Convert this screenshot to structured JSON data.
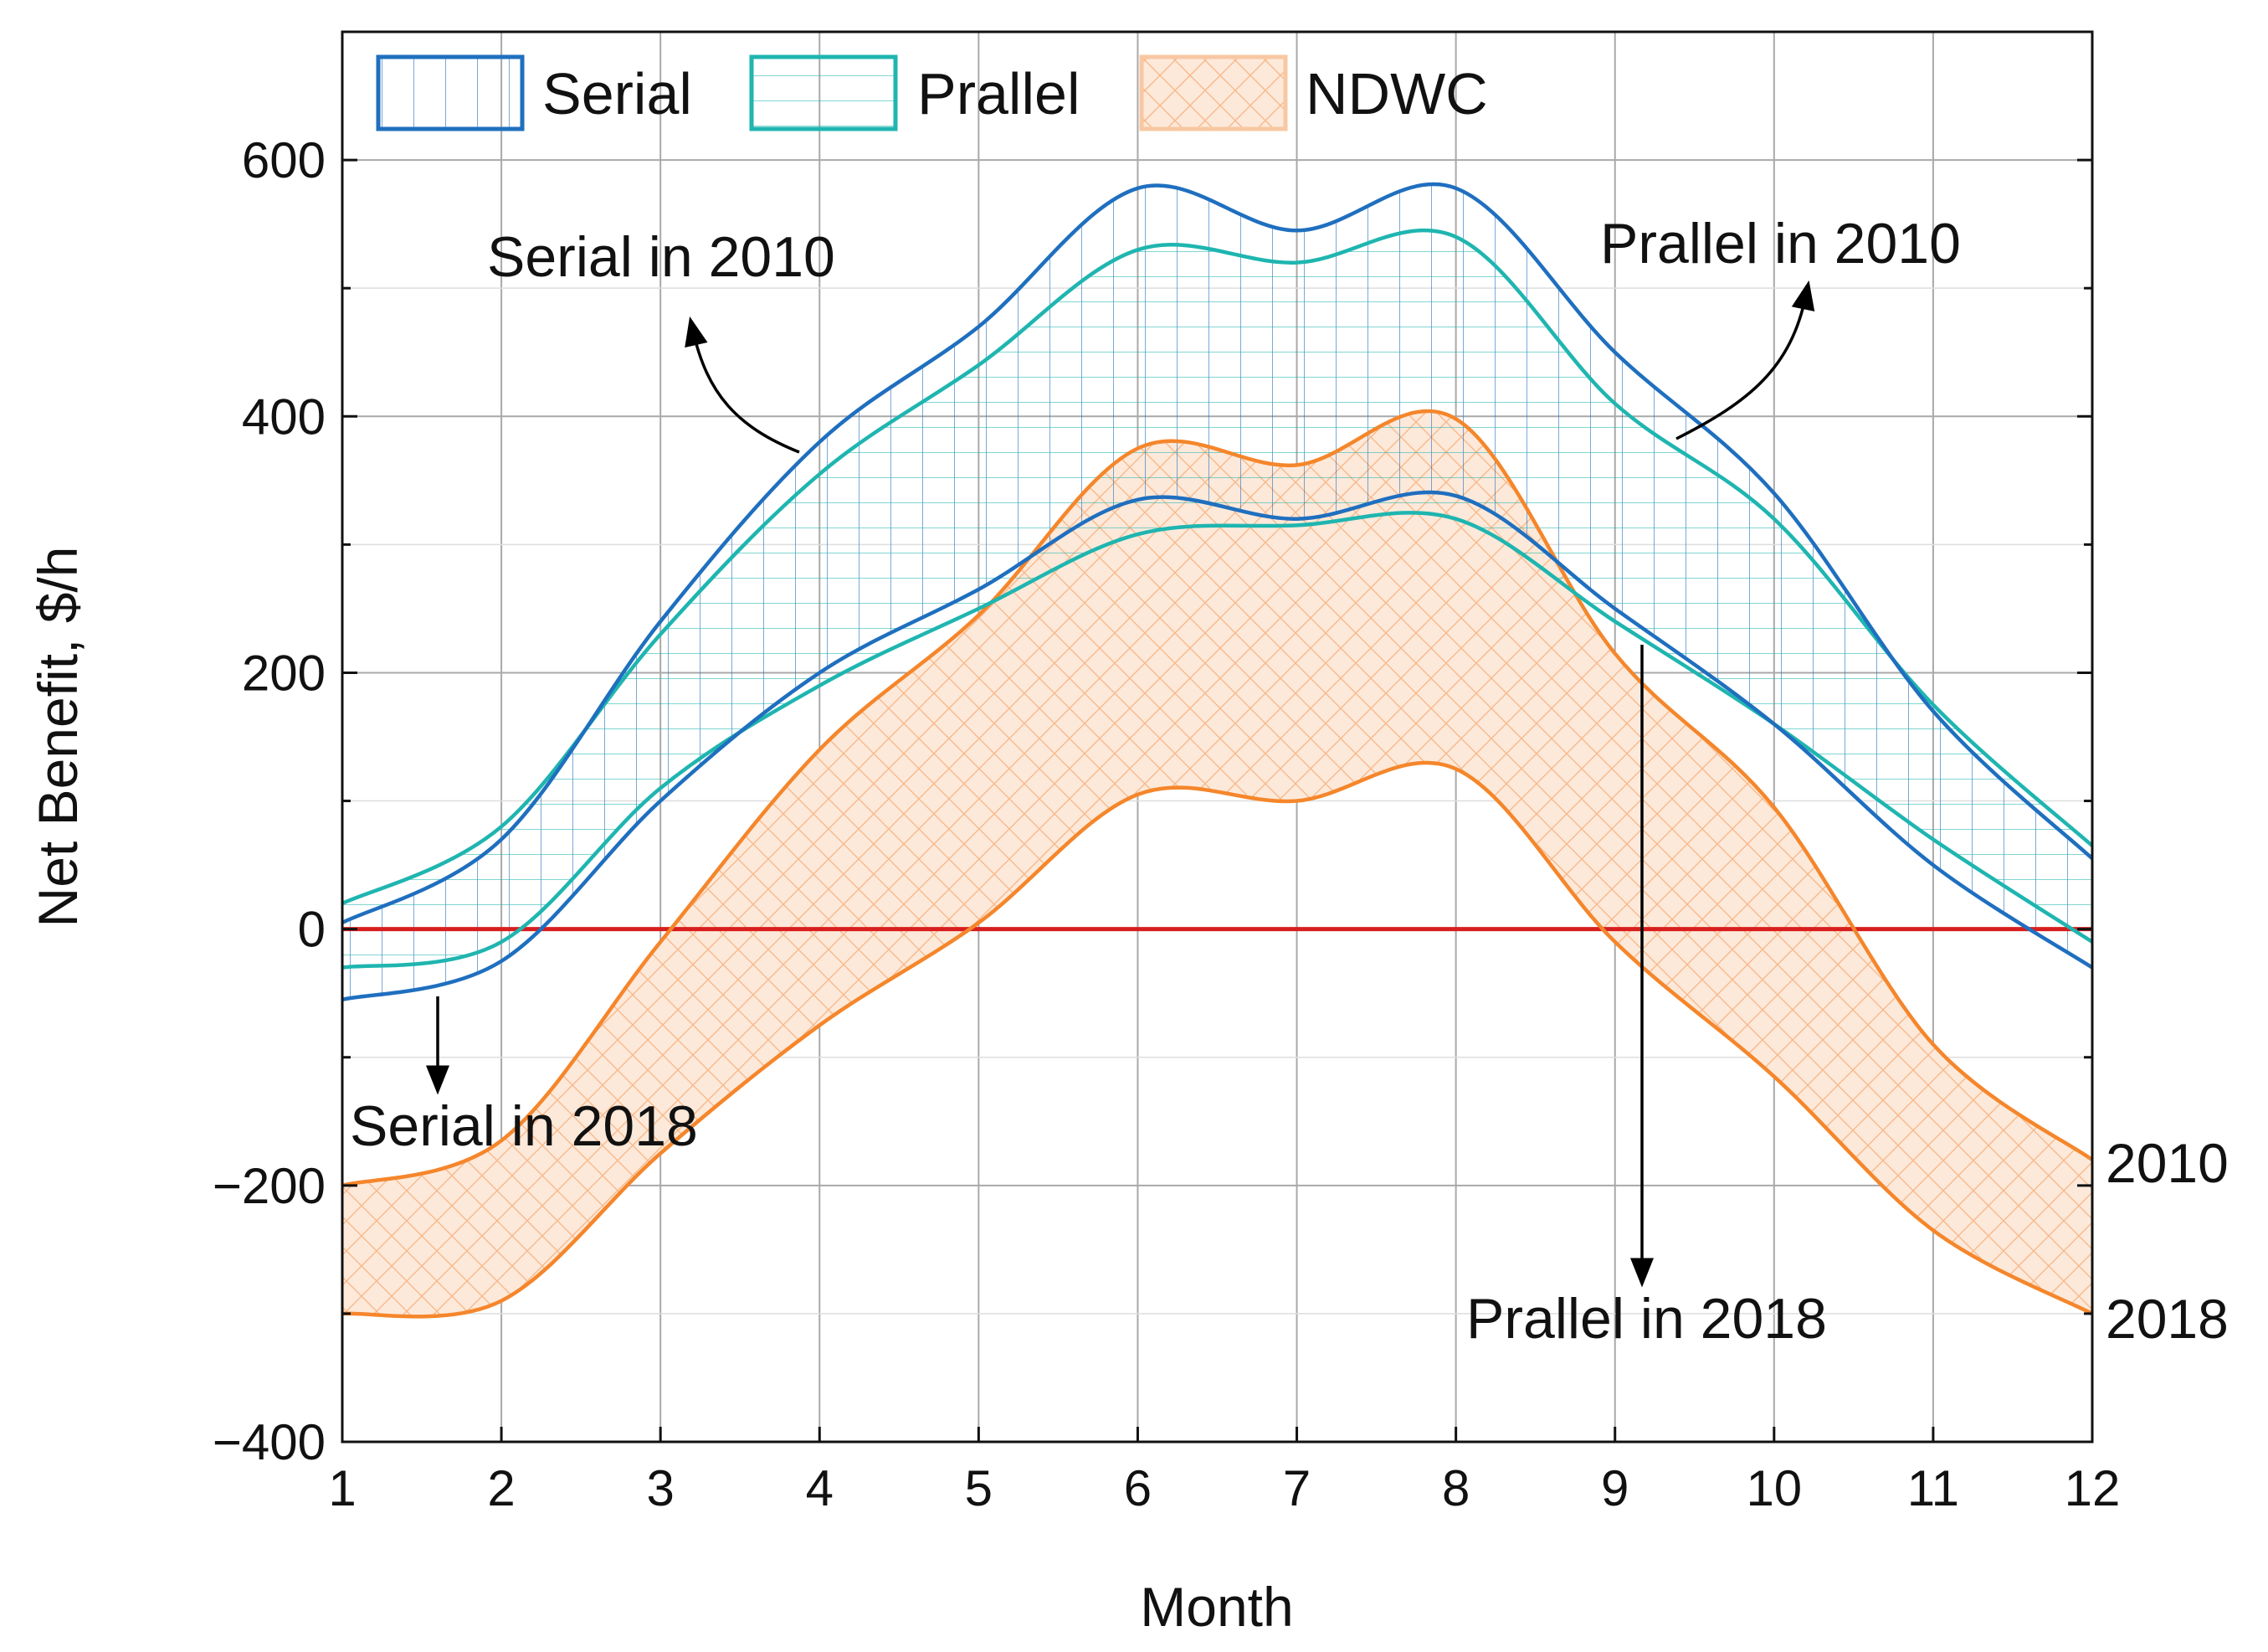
{
  "chart_data": {
    "type": "area",
    "title": "",
    "xlabel": "Month",
    "ylabel": "Net Benefit, $/h",
    "xlim": [
      1,
      12
    ],
    "ylim": [
      -400,
      700
    ],
    "xticks": [
      1,
      2,
      3,
      4,
      5,
      6,
      7,
      8,
      9,
      10,
      11,
      12
    ],
    "yticks": [
      -400,
      -200,
      0,
      200,
      400,
      600
    ],
    "x": [
      1,
      2,
      3,
      4,
      5,
      6,
      7,
      8,
      9,
      10,
      11,
      12
    ],
    "colors": {
      "serial": "#1f6fbf",
      "parallel": "#1fb5b0",
      "ndwc": "#f5862b",
      "ndwc_fill": "#fde3cf",
      "zero_line": "#d81e1e",
      "grid": "#a9a9a9"
    },
    "legend": {
      "position": "top-left",
      "entries": [
        {
          "key": "serial",
          "label": "Serial"
        },
        {
          "key": "parallel",
          "label": "Prallel"
        },
        {
          "key": "ndwc",
          "label": "NDWC"
        }
      ]
    },
    "series": [
      {
        "name": "Serial 2010",
        "group": "serial",
        "year": "2010",
        "values": [
          5,
          70,
          240,
          380,
          470,
          578,
          545,
          578,
          450,
          340,
          170,
          55
        ]
      },
      {
        "name": "Serial 2018",
        "group": "serial",
        "year": "2018",
        "values": [
          -55,
          -25,
          100,
          200,
          265,
          335,
          320,
          338,
          250,
          160,
          50,
          -30
        ]
      },
      {
        "name": "Prallel 2010",
        "group": "parallel",
        "year": "2010",
        "values": [
          20,
          80,
          230,
          355,
          440,
          530,
          520,
          540,
          410,
          320,
          175,
          65
        ]
      },
      {
        "name": "Prallel 2018",
        "group": "parallel",
        "year": "2018",
        "values": [
          -30,
          -10,
          110,
          190,
          250,
          308,
          315,
          320,
          240,
          160,
          70,
          -10
        ]
      },
      {
        "name": "NDWC 2010",
        "group": "ndwc",
        "year": "2010",
        "values": [
          -200,
          -165,
          -10,
          140,
          245,
          375,
          362,
          398,
          215,
          95,
          -90,
          -180
        ]
      },
      {
        "name": "NDWC 2018",
        "group": "ndwc",
        "year": "2018",
        "values": [
          -300,
          -290,
          -175,
          -75,
          5,
          105,
          100,
          125,
          -10,
          -115,
          -235,
          -300
        ]
      }
    ],
    "reference_line": {
      "y": 0
    },
    "annotations": [
      {
        "id": "serial-2010",
        "text": "Serial in 2010"
      },
      {
        "id": "prallel-2010",
        "text": "Prallel in 2010"
      },
      {
        "id": "serial-2018",
        "text": "Serial in 2018"
      },
      {
        "id": "prallel-2018",
        "text": "Prallel in 2018"
      }
    ],
    "end_labels": [
      "2010",
      "2018"
    ]
  }
}
